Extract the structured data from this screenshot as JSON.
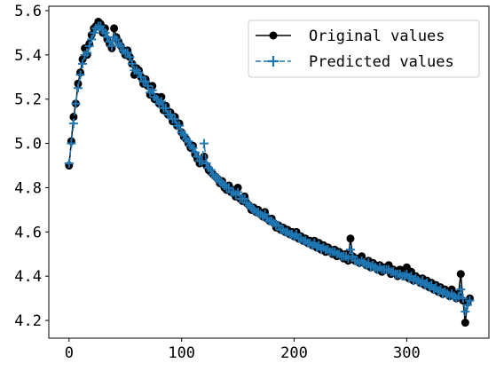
{
  "chart_data": {
    "type": "line",
    "title": "",
    "xlabel": "",
    "ylabel": "",
    "xlim": [
      -18,
      373
    ],
    "ylim": [
      4.12,
      5.62
    ],
    "xticks": [
      0,
      100,
      200,
      300
    ],
    "xtick_labels": [
      "0",
      "100",
      "200",
      "300"
    ],
    "yticks": [
      4.2,
      4.4,
      4.6,
      4.8,
      5.0,
      5.2,
      5.4,
      5.6
    ],
    "ytick_labels": [
      "4.2",
      "4.4",
      "4.6",
      "4.8",
      "5.0",
      "5.2",
      "5.4",
      "5.6"
    ],
    "legend_position": "top-right",
    "legend": [
      "Original values",
      "Predicted values"
    ],
    "series": [
      {
        "name": "Original values",
        "color": "#000000",
        "marker": "circle",
        "style": "solid",
        "x": [
          0,
          2,
          4,
          6,
          8,
          10,
          12,
          14,
          16,
          18,
          20,
          22,
          24,
          26,
          28,
          30,
          32,
          34,
          36,
          38,
          40,
          42,
          44,
          46,
          48,
          50,
          52,
          54,
          56,
          58,
          60,
          62,
          64,
          66,
          68,
          70,
          72,
          74,
          76,
          78,
          80,
          82,
          84,
          86,
          88,
          90,
          92,
          94,
          96,
          98,
          100,
          102,
          104,
          106,
          108,
          110,
          112,
          114,
          116,
          118,
          120,
          122,
          124,
          126,
          128,
          130,
          132,
          134,
          136,
          138,
          140,
          142,
          144,
          146,
          148,
          150,
          152,
          154,
          156,
          158,
          160,
          162,
          164,
          166,
          168,
          170,
          172,
          174,
          176,
          178,
          180,
          182,
          184,
          186,
          188,
          190,
          192,
          194,
          196,
          198,
          200,
          202,
          204,
          206,
          208,
          210,
          212,
          214,
          216,
          218,
          220,
          222,
          224,
          226,
          228,
          230,
          232,
          234,
          236,
          238,
          240,
          242,
          244,
          246,
          248,
          250,
          252,
          254,
          256,
          258,
          260,
          262,
          264,
          266,
          268,
          270,
          272,
          274,
          276,
          278,
          280,
          282,
          284,
          286,
          288,
          290,
          292,
          294,
          296,
          298,
          300,
          302,
          304,
          306,
          308,
          310,
          312,
          314,
          316,
          318,
          320,
          322,
          324,
          326,
          328,
          330,
          332,
          334,
          336,
          338,
          340,
          342,
          344,
          346,
          348,
          350,
          352,
          354,
          356
        ],
        "y": [
          4.9,
          5.01,
          5.12,
          5.18,
          5.27,
          5.32,
          5.38,
          5.43,
          5.4,
          5.45,
          5.49,
          5.52,
          5.53,
          5.55,
          5.54,
          5.5,
          5.52,
          5.47,
          5.45,
          5.43,
          5.52,
          5.48,
          5.46,
          5.44,
          5.42,
          5.4,
          5.42,
          5.39,
          5.36,
          5.31,
          5.34,
          5.33,
          5.3,
          5.27,
          5.29,
          5.26,
          5.22,
          5.26,
          5.2,
          5.21,
          5.18,
          5.21,
          5.15,
          5.17,
          5.13,
          5.14,
          5.1,
          5.12,
          5.08,
          5.09,
          5.05,
          5.03,
          5.02,
          5.0,
          4.98,
          4.99,
          4.95,
          4.93,
          4.91,
          4.92,
          4.94,
          4.9,
          4.88,
          4.87,
          4.86,
          4.85,
          4.84,
          4.82,
          4.83,
          4.8,
          4.79,
          4.81,
          4.78,
          4.79,
          4.76,
          4.8,
          4.75,
          4.74,
          4.76,
          4.73,
          4.72,
          4.7,
          4.71,
          4.69,
          4.7,
          4.68,
          4.67,
          4.69,
          4.66,
          4.65,
          4.66,
          4.64,
          4.62,
          4.63,
          4.61,
          4.62,
          4.6,
          4.61,
          4.59,
          4.6,
          4.58,
          4.6,
          4.57,
          4.58,
          4.56,
          4.57,
          4.55,
          4.56,
          4.54,
          4.56,
          4.53,
          4.55,
          4.52,
          4.54,
          4.51,
          4.53,
          4.52,
          4.5,
          4.52,
          4.49,
          4.51,
          4.5,
          4.48,
          4.5,
          4.47,
          4.57,
          4.49,
          4.47,
          4.48,
          4.46,
          4.49,
          4.46,
          4.45,
          4.47,
          4.44,
          4.46,
          4.45,
          4.43,
          4.45,
          4.42,
          4.44,
          4.43,
          4.45,
          4.41,
          4.43,
          4.42,
          4.4,
          4.43,
          4.41,
          4.4,
          4.44,
          4.39,
          4.42,
          4.38,
          4.4,
          4.39,
          4.37,
          4.39,
          4.36,
          4.38,
          4.35,
          4.37,
          4.34,
          4.36,
          4.33,
          4.35,
          4.32,
          4.34,
          4.33,
          4.31,
          4.34,
          4.32,
          4.3,
          4.32,
          4.41,
          4.29,
          4.19,
          4.28,
          4.3
        ]
      },
      {
        "name": "Predicted values",
        "color": "#1f77b4",
        "marker": "plus",
        "style": "dashed",
        "x": [
          0,
          2,
          4,
          6,
          8,
          10,
          12,
          14,
          16,
          18,
          20,
          22,
          24,
          26,
          28,
          30,
          32,
          34,
          36,
          38,
          40,
          42,
          44,
          46,
          48,
          50,
          52,
          54,
          56,
          58,
          60,
          62,
          64,
          66,
          68,
          70,
          72,
          74,
          76,
          78,
          80,
          82,
          84,
          86,
          88,
          90,
          92,
          94,
          96,
          98,
          100,
          102,
          104,
          106,
          108,
          110,
          112,
          114,
          116,
          118,
          120,
          122,
          124,
          126,
          128,
          130,
          132,
          134,
          136,
          138,
          140,
          142,
          144,
          146,
          148,
          150,
          152,
          154,
          156,
          158,
          160,
          162,
          164,
          166,
          168,
          170,
          172,
          174,
          176,
          178,
          180,
          182,
          184,
          186,
          188,
          190,
          192,
          194,
          196,
          198,
          200,
          202,
          204,
          206,
          208,
          210,
          212,
          214,
          216,
          218,
          220,
          222,
          224,
          226,
          228,
          230,
          232,
          234,
          236,
          238,
          240,
          242,
          244,
          246,
          248,
          250,
          252,
          254,
          256,
          258,
          260,
          262,
          264,
          266,
          268,
          270,
          272,
          274,
          276,
          278,
          280,
          282,
          284,
          286,
          288,
          290,
          292,
          294,
          296,
          298,
          300,
          302,
          304,
          306,
          308,
          310,
          312,
          314,
          316,
          318,
          320,
          322,
          324,
          326,
          328,
          330,
          332,
          334,
          336,
          338,
          340,
          342,
          344,
          346,
          348,
          350,
          352,
          354,
          356
        ],
        "y": [
          4.91,
          5.0,
          5.09,
          5.18,
          5.25,
          5.31,
          5.36,
          5.4,
          5.41,
          5.44,
          5.47,
          5.5,
          5.52,
          5.53,
          5.53,
          5.51,
          5.5,
          5.48,
          5.46,
          5.44,
          5.48,
          5.47,
          5.45,
          5.44,
          5.42,
          5.41,
          5.41,
          5.39,
          5.36,
          5.33,
          5.33,
          5.32,
          5.3,
          5.28,
          5.28,
          5.26,
          5.23,
          5.24,
          5.21,
          5.2,
          5.18,
          5.19,
          5.16,
          5.16,
          5.13,
          5.13,
          5.11,
          5.11,
          5.08,
          5.08,
          5.05,
          5.04,
          5.02,
          5.01,
          4.99,
          4.98,
          4.96,
          4.94,
          4.92,
          4.92,
          5.0,
          4.91,
          4.89,
          4.88,
          4.86,
          4.85,
          4.84,
          4.83,
          4.82,
          4.81,
          4.8,
          4.8,
          4.78,
          4.78,
          4.77,
          4.78,
          4.75,
          4.75,
          4.75,
          4.73,
          4.72,
          4.71,
          4.7,
          4.69,
          4.69,
          4.68,
          4.67,
          4.68,
          4.66,
          4.65,
          4.65,
          4.64,
          4.63,
          4.63,
          4.61,
          4.61,
          4.6,
          4.6,
          4.59,
          4.59,
          4.58,
          4.59,
          4.57,
          4.57,
          4.56,
          4.56,
          4.55,
          4.55,
          4.54,
          4.55,
          4.53,
          4.54,
          4.52,
          4.53,
          4.52,
          4.52,
          4.51,
          4.51,
          4.51,
          4.5,
          4.5,
          4.49,
          4.49,
          4.49,
          4.48,
          4.52,
          4.49,
          4.47,
          4.47,
          4.46,
          4.47,
          4.46,
          4.45,
          4.46,
          4.44,
          4.45,
          4.44,
          4.43,
          4.44,
          4.43,
          4.43,
          4.43,
          4.43,
          4.42,
          4.42,
          4.41,
          4.41,
          4.41,
          4.4,
          4.4,
          4.41,
          4.39,
          4.4,
          4.38,
          4.39,
          4.38,
          4.37,
          4.38,
          4.36,
          4.37,
          4.35,
          4.36,
          4.34,
          4.35,
          4.33,
          4.34,
          4.32,
          4.33,
          4.32,
          4.31,
          4.32,
          4.31,
          4.3,
          4.31,
          4.34,
          4.3,
          4.24,
          4.27,
          4.29
        ]
      }
    ]
  }
}
